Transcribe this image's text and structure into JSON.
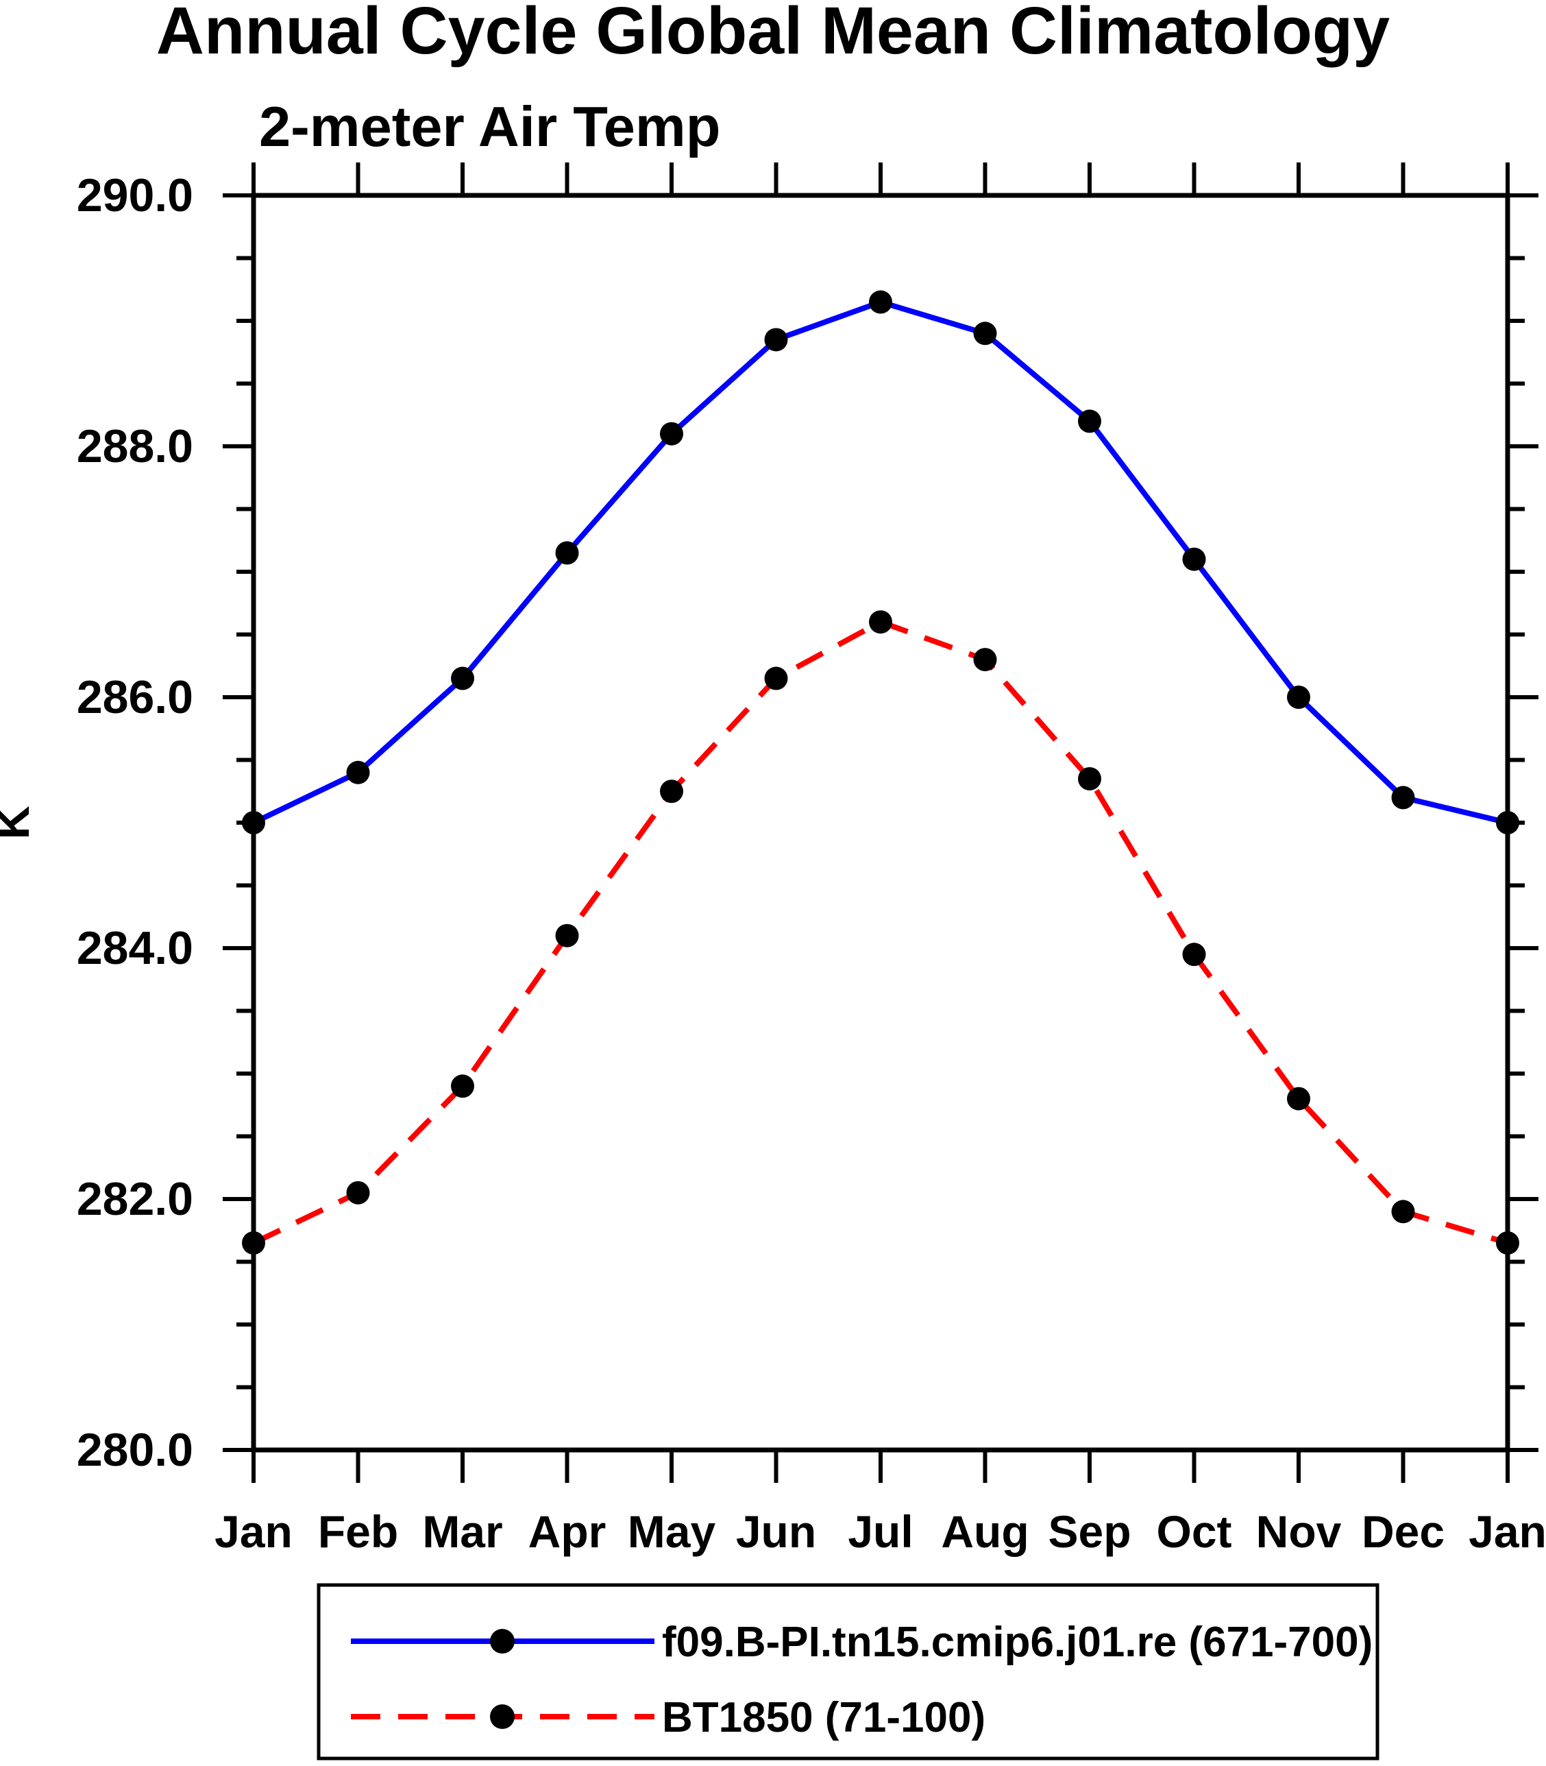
{
  "chart_data": {
    "type": "line",
    "title": "Annual Cycle Global Mean Climatology",
    "subtitle": "2-meter Air Temp",
    "xlabel": "",
    "ylabel": "K",
    "ylim": [
      280.0,
      290.0
    ],
    "y_major_tick_step": 2.0,
    "y_minor_tick_step": 0.5,
    "y_tick_label_format": "one-decimal",
    "grid": false,
    "legend_position": "bottom",
    "frame": "full-box",
    "categories": [
      "Jan",
      "Feb",
      "Mar",
      "Apr",
      "May",
      "Jun",
      "Jul",
      "Aug",
      "Sep",
      "Oct",
      "Nov",
      "Dec",
      "Jan"
    ],
    "series": [
      {
        "name": "f09.B-PI.tn15.cmip6.j01.re (671-700)",
        "line_style": "solid",
        "line_color": "#0000FF",
        "marker": "filled-circle",
        "marker_color": "#000000",
        "values": [
          285.0,
          285.4,
          286.15,
          287.15,
          288.1,
          288.85,
          289.15,
          288.9,
          288.2,
          287.1,
          286.0,
          285.2,
          285.0
        ]
      },
      {
        "name": "BT1850 (71-100)",
        "line_style": "dashed",
        "line_color": "#FF0000",
        "marker": "filled-circle",
        "marker_color": "#000000",
        "values": [
          281.65,
          282.05,
          282.9,
          284.1,
          285.25,
          286.15,
          286.6,
          286.3,
          285.35,
          283.95,
          282.8,
          281.9,
          281.65
        ]
      }
    ],
    "colors": {
      "axis": "#000000",
      "text": "#000000",
      "background": "#FFFFFF",
      "series1": "#0000FF",
      "series2": "#FF0000",
      "marker": "#000000"
    }
  }
}
